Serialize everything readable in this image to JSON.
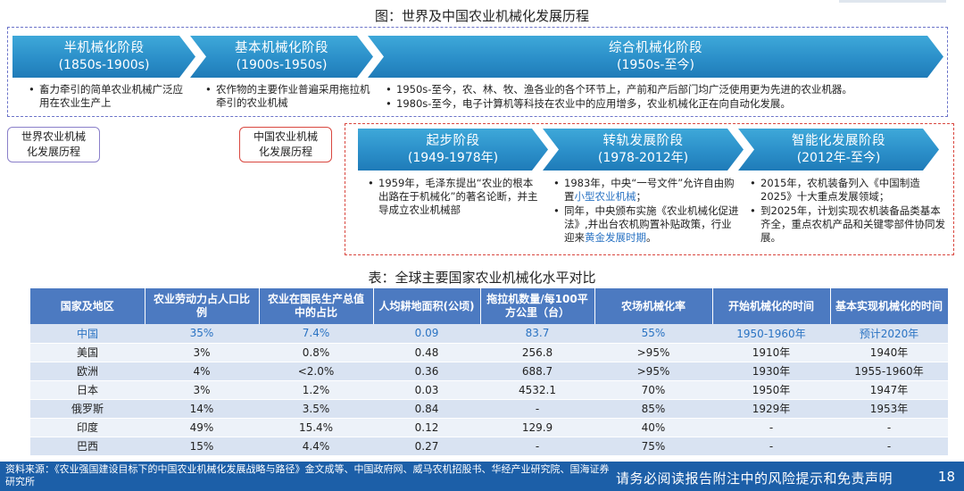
{
  "figure_title": "图：世界及中国农业机械化发展历程",
  "world": {
    "label": "世界农业机械化发展历程",
    "stages": [
      {
        "name": "半机械化阶段",
        "period": "(1850s-1900s)",
        "bullets": [
          "畜力牵引的简单农业机械广泛应用在农业生产上"
        ]
      },
      {
        "name": "基本机械化阶段",
        "period": "(1900s-1950s)",
        "bullets": [
          "农作物的主要作业普遍采用拖拉机牵引的农业机械"
        ]
      },
      {
        "name": "综合机械化阶段",
        "period": "(1950s-至今)",
        "bullets": [
          "1950s-至今，农、林、牧、渔各业的各个环节上，产前和产后部门均广泛使用更为先进的农业机器。",
          "1980s-至今，电子计算机等科技在农业中的应用增多，农业机械化正在向自动化发展。"
        ]
      }
    ]
  },
  "china": {
    "label": "中国农业机械化发展历程",
    "stages": [
      {
        "name": "起步阶段",
        "period": "(1949-1978年)"
      },
      {
        "name": "转轨发展阶段",
        "period": "(1978-2012年)"
      },
      {
        "name": "智能化发展阶段",
        "period": "(2012年-至今)"
      }
    ],
    "bullets_1": [
      "1959年，毛泽东提出“农业的根本出路在于机械化”的著名论断，并主导成立农业机械部"
    ],
    "bullets_2": {
      "b1_pre": "1983年，中央“一号文件”允许自由购置",
      "b1_hl": "小型农业机械",
      "b1_post": "；",
      "b2_pre": "同年，中央颁布实施《农业机械化促进法》,并出台农机购置补贴政策，行业迎来",
      "b2_hl": "黄金发展时期",
      "b2_post": "。"
    },
    "bullets_3": [
      "2015年，农机装备列入《中国制造2025》十大重点发展领域；",
      "到2025年，计划实现农机装备品类基本齐全，重点农机产品和关键零部件协同发展。"
    ]
  },
  "table_title": "表：全球主要国家农业机械化水平对比",
  "table": {
    "headers": [
      "国家及地区",
      "农业劳动力占人口比例",
      "农业在国民生产总值中的占比",
      "人均耕地面积(公顷)",
      "拖拉机数量/每100平方公里（台）",
      "农场机械化率",
      "开始机械化的时间",
      "基本实现机械化的时间"
    ],
    "rows": [
      [
        "中国",
        "35%",
        "7.4%",
        "0.09",
        "83.7",
        "55%",
        "1950-1960年",
        "预计2020年"
      ],
      [
        "美国",
        "3%",
        "0.8%",
        "0.48",
        "256.8",
        ">95%",
        "1910年",
        "1940年"
      ],
      [
        "欧洲",
        "4%",
        "<2.0%",
        "0.36",
        "688.7",
        ">95%",
        "1930年",
        "1955-1960年"
      ],
      [
        "日本",
        "3%",
        "1.2%",
        "0.03",
        "4532.1",
        "70%",
        "1950年",
        "1947年"
      ],
      [
        "俄罗斯",
        "14%",
        "3.5%",
        "0.84",
        "-",
        "85%",
        "1929年",
        "1953年"
      ],
      [
        "印度",
        "49%",
        "15.4%",
        "0.12",
        "129.9",
        "40%",
        "-",
        "-"
      ],
      [
        "巴西",
        "15%",
        "4.4%",
        "0.27",
        "-",
        "75%",
        "-",
        "-"
      ]
    ]
  },
  "footer": {
    "source": "资料来源：《农业强国建设目标下的中国农业机械化发展战略与路径》金文成等、中国政府网、威马农机招股书、华经产业研究院、国海证券研究所",
    "disclaimer": "请务必阅读报告附注中的风险提示和免责声明",
    "page_number": "18"
  },
  "colors": {
    "chevron": "#2b8fc9",
    "table_header": "#4c7ac1",
    "footer": "#1c5fa8",
    "highlight": "#2a73c3"
  }
}
